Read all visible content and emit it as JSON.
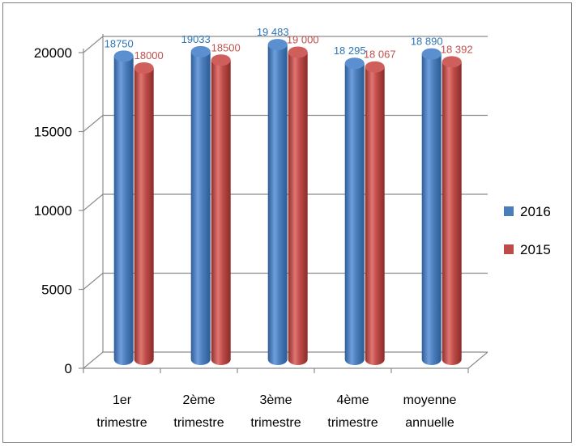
{
  "chart_data": {
    "type": "bar",
    "title": "",
    "xlabel": "",
    "ylabel": "",
    "categories": [
      [
        "1er",
        "trimestre"
      ],
      [
        "2ème",
        "trimestre"
      ],
      [
        "3ème",
        "trimestre"
      ],
      [
        "4ème",
        "trimestre"
      ],
      [
        "moyenne",
        "annuelle"
      ]
    ],
    "series": [
      {
        "name": "2016",
        "color": "#4a7ebb",
        "label_color": "#2e75b6",
        "values": [
          18750,
          19033,
          19483,
          18295,
          18890
        ],
        "labels": [
          "18750",
          "19033",
          "19 483",
          "18 295",
          "18 890"
        ]
      },
      {
        "name": "2015",
        "color": "#be4b48",
        "label_color": "#c0504d",
        "values": [
          18000,
          18500,
          19000,
          18067,
          18392
        ],
        "labels": [
          "18000",
          "18500",
          "19 000",
          "18 067",
          "18 392"
        ]
      }
    ],
    "y_ticks": [
      "0",
      "5000",
      "10000",
      "15000",
      "20000"
    ],
    "ylim": [
      0,
      20000
    ],
    "grid": true,
    "legend_position": "right"
  }
}
